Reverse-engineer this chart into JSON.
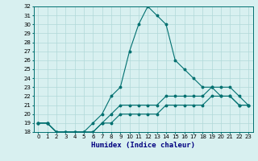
{
  "xlabel": "Humidex (Indice chaleur)",
  "ylabel": "",
  "background_color": "#d8f0f0",
  "line_color": "#007070",
  "grid_color": "#b0d8d8",
  "x_values": [
    0,
    1,
    2,
    3,
    4,
    5,
    6,
    7,
    8,
    9,
    10,
    11,
    12,
    13,
    14,
    15,
    16,
    17,
    18,
    19,
    20,
    21,
    22,
    23
  ],
  "line1": [
    19,
    19,
    18,
    18,
    18,
    18,
    19,
    20,
    22,
    23,
    27,
    30,
    32,
    31,
    30,
    26,
    25,
    24,
    23,
    23,
    22,
    22,
    21,
    21
  ],
  "line2": [
    19,
    19,
    18,
    18,
    18,
    18,
    18,
    19,
    20,
    21,
    21,
    21,
    21,
    21,
    22,
    22,
    22,
    22,
    22,
    23,
    23,
    23,
    22,
    21
  ],
  "line3": [
    19,
    19,
    18,
    18,
    18,
    18,
    18,
    19,
    19,
    20,
    20,
    20,
    20,
    20,
    21,
    21,
    21,
    21,
    21,
    22,
    22,
    22,
    21,
    21
  ],
  "ylim": [
    18,
    32
  ],
  "yticks": [
    18,
    19,
    20,
    21,
    22,
    23,
    24,
    25,
    26,
    27,
    28,
    29,
    30,
    31,
    32
  ],
  "xticks": [
    0,
    1,
    2,
    3,
    4,
    5,
    6,
    7,
    8,
    9,
    10,
    11,
    12,
    13,
    14,
    15,
    16,
    17,
    18,
    19,
    20,
    21,
    22,
    23
  ],
  "xlabel_fontsize": 6.5,
  "tick_fontsize": 5.0
}
